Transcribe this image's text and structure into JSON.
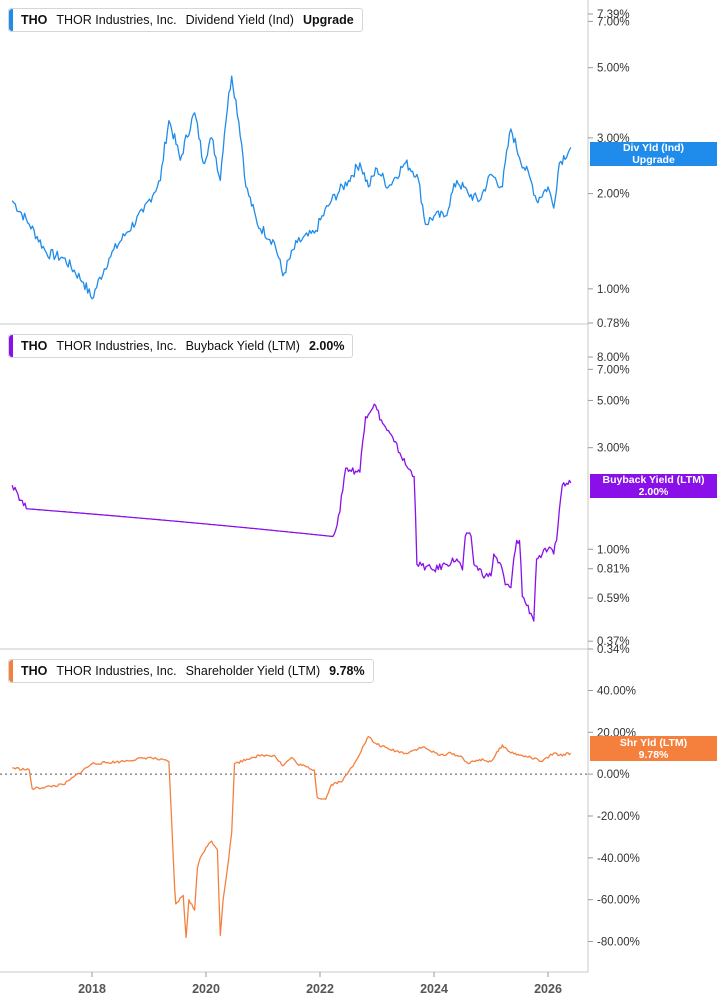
{
  "chart_data": [
    {
      "type": "line",
      "ticker": "THO",
      "company": "THOR Industries, Inc.",
      "metric": "Dividend Yield (Ind)",
      "current_label": "Upgrade",
      "flag_lines": [
        "Div Yld (Ind)",
        "Upgrade"
      ],
      "color": "#1f8ceb",
      "scale": "log",
      "ylim": [
        0.78,
        7.39
      ],
      "yticks": [
        {
          "value": 7.39,
          "label": "7.39%"
        },
        {
          "value": 7.0,
          "label": "7.00%"
        },
        {
          "value": 5.0,
          "label": "5.00%"
        },
        {
          "value": 3.0,
          "label": "3.00%"
        },
        {
          "value": 2.0,
          "label": "2.00%"
        },
        {
          "value": 1.0,
          "label": "1.00%"
        },
        {
          "value": 0.78,
          "label": "0.78%"
        }
      ],
      "series": [
        {
          "x": [
            2016.6,
            2016.9,
            2017.2,
            2017.5,
            2017.85,
            2018.0,
            2018.3,
            2018.6,
            2018.9,
            2019.2,
            2019.35,
            2019.55,
            2019.8,
            2019.95,
            2020.1,
            2020.25,
            2020.45,
            2020.7,
            2020.9,
            2021.2,
            2021.35,
            2021.6,
            2021.9,
            2022.2,
            2022.5,
            2022.7,
            2022.85,
            2023.0,
            2023.2,
            2023.5,
            2023.7,
            2023.85,
            2024.0,
            2024.2,
            2024.4,
            2024.6,
            2024.8,
            2025.0,
            2025.2,
            2025.35,
            2025.5,
            2025.7,
            2025.8,
            2026.0,
            2026.1,
            2026.2,
            2026.4
          ],
          "y": [
            1.9,
            1.6,
            1.3,
            1.25,
            1.05,
            0.93,
            1.25,
            1.5,
            1.75,
            2.2,
            3.4,
            2.55,
            3.6,
            2.5,
            3.0,
            2.2,
            4.7,
            2.1,
            1.6,
            1.4,
            1.1,
            1.4,
            1.5,
            1.9,
            2.2,
            2.5,
            2.1,
            2.4,
            2.1,
            2.5,
            2.3,
            1.6,
            1.7,
            1.7,
            2.2,
            2.0,
            1.9,
            2.3,
            2.1,
            3.2,
            2.6,
            2.2,
            1.9,
            2.1,
            1.8,
            2.5,
            2.8
          ]
        }
      ]
    },
    {
      "type": "line",
      "ticker": "THO",
      "company": "THOR Industries, Inc.",
      "metric": "Buyback Yield (LTM)",
      "current_label": "2.00%",
      "flag_lines": [
        "Buyback Yield (LTM)",
        "2.00%"
      ],
      "color": "#8a10ea",
      "scale": "log",
      "ylim": [
        0.34,
        8.0
      ],
      "yticks": [
        {
          "value": 8.0,
          "label": "8.00%"
        },
        {
          "value": 7.0,
          "label": "7.00%"
        },
        {
          "value": 5.0,
          "label": "5.00%"
        },
        {
          "value": 3.0,
          "label": "3.00%"
        },
        {
          "value": 1.0,
          "label": "1.00%"
        },
        {
          "value": 0.81,
          "label": "0.81%"
        },
        {
          "value": 0.59,
          "label": "0.59%"
        },
        {
          "value": 0.37,
          "label": "0.37%"
        },
        {
          "value": 0.34,
          "label": "0.34%"
        }
      ],
      "series": [
        {
          "x": [
            2016.6,
            2016.65,
            2016.75,
            2016.85,
            2022.2,
            2022.3,
            2022.35,
            2022.45,
            2022.7,
            2022.8,
            2022.95,
            2023.1,
            2023.3,
            2023.5,
            2023.65,
            2023.7,
            2024.0,
            2024.2,
            2024.4,
            2024.5,
            2024.55,
            2024.65,
            2024.7,
            2024.9,
            2025.0,
            2025.05,
            2025.2,
            2025.25,
            2025.35,
            2025.45,
            2025.5,
            2025.55,
            2025.7,
            2025.75,
            2025.8,
            2025.9,
            2026.0,
            2026.1,
            2026.15,
            2026.25,
            2026.4
          ],
          "y": [
            2.0,
            1.95,
            1.7,
            1.55,
            1.15,
            1.3,
            1.5,
            2.4,
            2.3,
            4.2,
            4.8,
            3.9,
            3.2,
            2.5,
            2.2,
            0.85,
            0.8,
            0.85,
            0.9,
            0.8,
            1.15,
            1.15,
            0.85,
            0.75,
            0.75,
            0.95,
            0.8,
            0.68,
            0.66,
            1.1,
            1.1,
            0.6,
            0.5,
            0.46,
            0.9,
            0.95,
            1.0,
            0.95,
            1.1,
            2.0,
            2.05
          ]
        }
      ]
    },
    {
      "type": "line",
      "ticker": "THO",
      "company": "THOR Industries, Inc.",
      "metric": "Shareholder Yield (LTM)",
      "current_label": "9.78%",
      "flag_lines": [
        "Shr Yld (LTM)",
        "9.78%"
      ],
      "color": "#f5803e",
      "scale": "linear",
      "ylim": [
        -85,
        45
      ],
      "yticks": [
        {
          "value": 40,
          "label": "40.00%"
        },
        {
          "value": 20,
          "label": "20.00%"
        },
        {
          "value": 0,
          "label": "0.00%"
        },
        {
          "value": -20,
          "label": "-20.00%"
        },
        {
          "value": -40,
          "label": "-40.00%"
        },
        {
          "value": -60,
          "label": "-60.00%"
        },
        {
          "value": -80,
          "label": "-80.00%"
        }
      ],
      "series": [
        {
          "x": [
            2016.6,
            2016.9,
            2016.95,
            2017.5,
            2017.6,
            2018.0,
            2018.5,
            2019.0,
            2019.35,
            2019.45,
            2019.47,
            2019.6,
            2019.65,
            2019.7,
            2019.8,
            2019.85,
            2019.9,
            2020.0,
            2020.1,
            2020.2,
            2020.25,
            2020.3,
            2020.4,
            2020.45,
            2020.5,
            2020.8,
            2021.0,
            2021.2,
            2021.35,
            2021.5,
            2021.6,
            2021.9,
            2021.95,
            2022.1,
            2022.2,
            2022.4,
            2022.6,
            2022.85,
            2022.95,
            2023.2,
            2023.5,
            2023.8,
            2024.1,
            2024.3,
            2024.5,
            2024.6,
            2024.8,
            2025.0,
            2025.2,
            2025.3,
            2025.5,
            2025.7,
            2025.9,
            2026.1,
            2026.2,
            2026.4
          ],
          "y": [
            3,
            2,
            -7,
            -5,
            -3,
            5,
            6,
            8,
            6,
            -55,
            -62,
            -58,
            -78,
            -60,
            -65,
            -45,
            -40,
            -35,
            -32,
            -36,
            -77,
            -60,
            -40,
            -28,
            5,
            8,
            9,
            9,
            4,
            8,
            5,
            2,
            -11,
            -12,
            -5,
            -3,
            5,
            18,
            15,
            12,
            10,
            13,
            9,
            10,
            8,
            5,
            7,
            6,
            14,
            11,
            9,
            8,
            6,
            10,
            9,
            10
          ]
        }
      ]
    }
  ],
  "x_axis": {
    "ticks": [
      {
        "value": 2018,
        "label": "2018"
      },
      {
        "value": 2020,
        "label": "2020"
      },
      {
        "value": 2022,
        "label": "2022"
      },
      {
        "value": 2024,
        "label": "2024"
      },
      {
        "value": 2026,
        "label": "2026"
      }
    ]
  }
}
